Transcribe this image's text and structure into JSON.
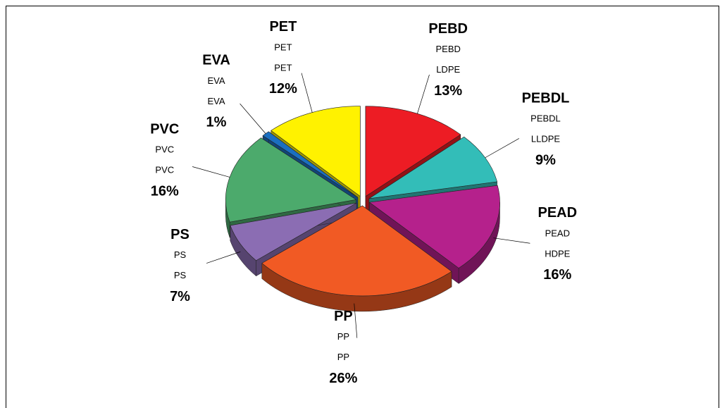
{
  "chart_data": {
    "type": "pie",
    "categories": [
      "PEBD",
      "PEBDL",
      "PEAD",
      "PP",
      "PS",
      "PVC",
      "EVA",
      "PET"
    ],
    "codes": [
      "LDPE",
      "LLDPE",
      "HDPE",
      "PP",
      "PS",
      "PVC",
      "EVA",
      "PET"
    ],
    "values": [
      13,
      9,
      16,
      26,
      7,
      16,
      1,
      12
    ],
    "value_labels": [
      "13%",
      "9%",
      "16%",
      "26%",
      "7%",
      "16%",
      "1%",
      "12%"
    ],
    "colors": [
      "#ed1c24",
      "#33bdb8",
      "#b5218c",
      "#f15a24",
      "#8b6db3",
      "#4caa6c",
      "#1b6fc0",
      "#fff200"
    ]
  }
}
